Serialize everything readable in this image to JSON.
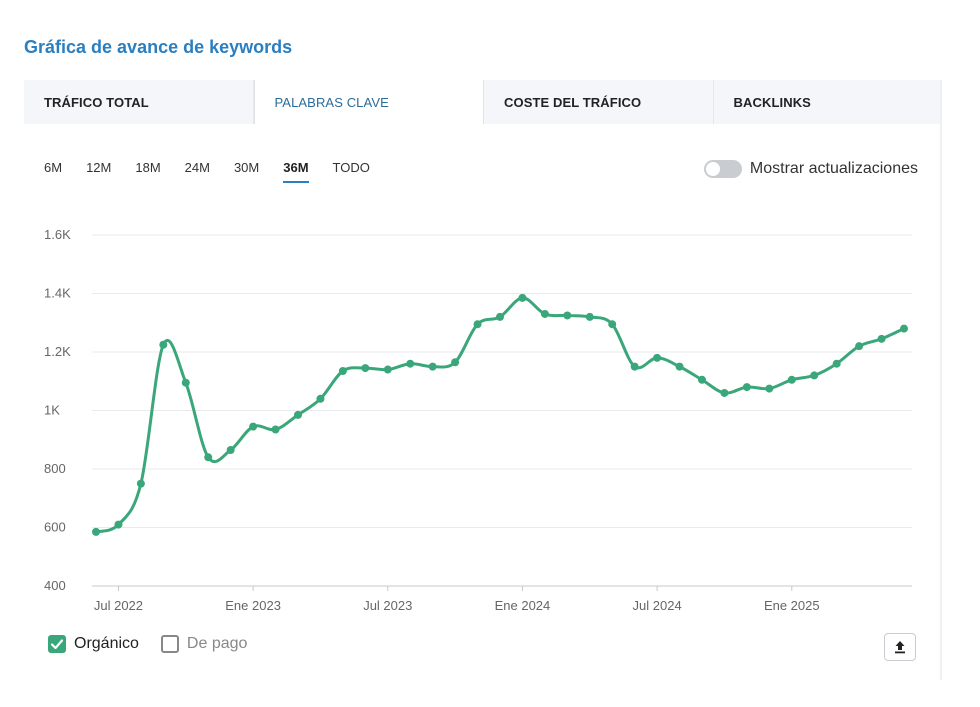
{
  "page": {
    "title": "Gráfica de avance de keywords"
  },
  "tabs": [
    {
      "label": "TRÁFICO TOTAL",
      "active": false
    },
    {
      "label": "PALABRAS CLAVE",
      "active": true
    },
    {
      "label": "COSTE DEL TRÁFICO",
      "active": false
    },
    {
      "label": "BACKLINKS",
      "active": false
    }
  ],
  "ranges": [
    "6M",
    "12M",
    "18M",
    "24M",
    "30M",
    "36M",
    "TODO"
  ],
  "selected_range": "36M",
  "toggle": {
    "label": "Mostrar actualizaciones",
    "on": false
  },
  "legend": {
    "organic": {
      "label": "Orgánico",
      "checked": true
    },
    "paid": {
      "label": "De pago",
      "checked": false
    }
  },
  "colors": {
    "accent": "#2a7fc1",
    "series": "#3aa77a",
    "grid": "#e8eaed"
  },
  "icons": {
    "export": "upload-icon",
    "checkbox": "check-icon"
  },
  "chart_data": {
    "type": "line",
    "title": "",
    "xlabel": "",
    "ylabel": "",
    "ylim": [
      400,
      1600
    ],
    "yticks": [
      400,
      600,
      800,
      1000,
      1200,
      1400,
      1600
    ],
    "ytick_labels": [
      "400",
      "600",
      "800",
      "1K",
      "1.2K",
      "1.4K",
      "1.6K"
    ],
    "xtick_labels": [
      {
        "label": "Jul 2022",
        "x": "2022-07"
      },
      {
        "label": "Ene 2023",
        "x": "2023-01"
      },
      {
        "label": "Jul 2023",
        "x": "2023-07"
      },
      {
        "label": "Ene 2024",
        "x": "2024-01"
      },
      {
        "label": "Jul 2024",
        "x": "2024-07"
      },
      {
        "label": "Ene 2025",
        "x": "2025-01"
      }
    ],
    "grid": true,
    "series": [
      {
        "name": "Orgánico",
        "x": [
          "2022-06",
          "2022-07",
          "2022-08",
          "2022-09",
          "2022-10",
          "2022-11",
          "2022-12",
          "2023-01",
          "2023-02",
          "2023-03",
          "2023-04",
          "2023-05",
          "2023-06",
          "2023-07",
          "2023-08",
          "2023-09",
          "2023-10",
          "2023-11",
          "2023-12",
          "2024-01",
          "2024-02",
          "2024-03",
          "2024-04",
          "2024-05",
          "2024-06",
          "2024-07",
          "2024-08",
          "2024-09",
          "2024-10",
          "2024-11",
          "2024-12",
          "2025-01",
          "2025-02",
          "2025-03",
          "2025-04",
          "2025-05",
          "2025-06"
        ],
        "values": [
          585,
          610,
          750,
          1225,
          1095,
          840,
          865,
          945,
          935,
          985,
          1040,
          1135,
          1145,
          1140,
          1160,
          1150,
          1165,
          1295,
          1320,
          1385,
          1330,
          1325,
          1320,
          1295,
          1150,
          1180,
          1150,
          1105,
          1060,
          1080,
          1075,
          1105,
          1120,
          1160,
          1220,
          1245,
          1280
        ]
      }
    ]
  }
}
